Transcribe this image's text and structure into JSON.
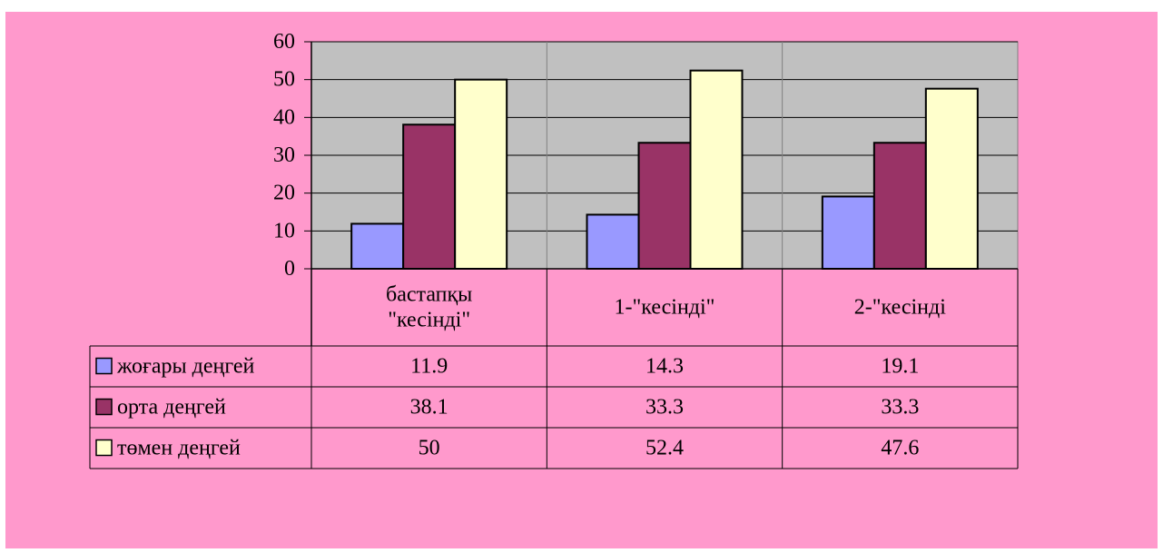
{
  "colors": {
    "background": "#ff99cc",
    "plot_area": "#c0c0c0",
    "series": [
      "#9999ff",
      "#993366",
      "#ffffcc"
    ]
  },
  "chart_data": {
    "type": "bar",
    "title": "",
    "xlabel": "",
    "ylabel": "",
    "ylim": [
      0,
      60
    ],
    "yticks": [
      "0",
      "10",
      "20",
      "30",
      "40",
      "50",
      "60"
    ],
    "grid": true,
    "legend_position": "data-table-left",
    "categories": [
      [
        "бастапқы",
        "\"кесінді\""
      ],
      [
        "1-\"кесінді\""
      ],
      [
        "2-\"кесінді"
      ]
    ],
    "series": [
      {
        "name": "жоғары деңгей",
        "values": [
          11.9,
          14.3,
          19.1
        ],
        "labels": [
          "11.9",
          "14.3",
          "19.1"
        ]
      },
      {
        "name": "орта деңгей",
        "values": [
          38.1,
          33.3,
          33.3
        ],
        "labels": [
          "38.1",
          "33.3",
          "33.3"
        ]
      },
      {
        "name": "төмен деңгей",
        "values": [
          50,
          52.4,
          47.6
        ],
        "labels": [
          "50",
          "52.4",
          "47.6"
        ]
      }
    ]
  }
}
